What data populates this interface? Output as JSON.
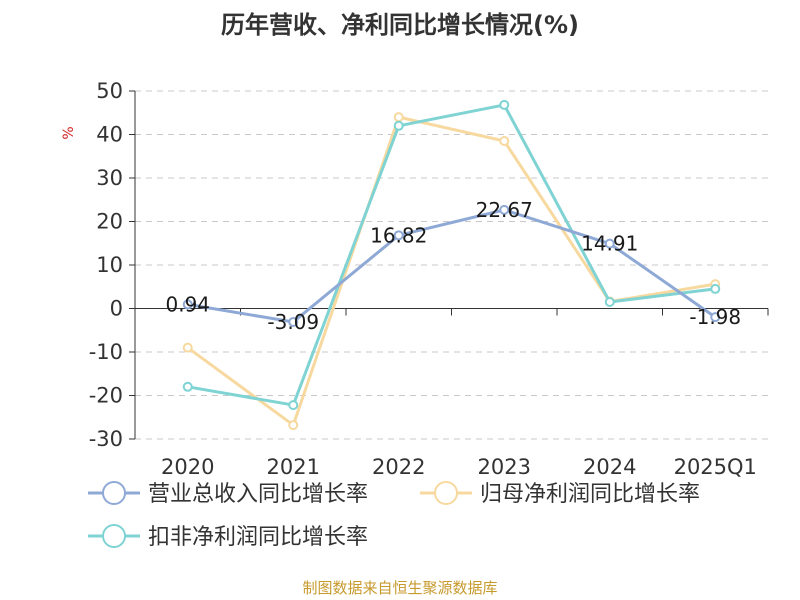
{
  "chart_data": {
    "type": "line",
    "title": "历年营收、净利同比增长情况(%)",
    "ylabel": "%",
    "categories": [
      "2020",
      "2021",
      "2022",
      "2023",
      "2024",
      "2025Q1"
    ],
    "ylim": [
      -30,
      50
    ],
    "yticks": [
      -30,
      -20,
      -10,
      0,
      10,
      20,
      30,
      40,
      50
    ],
    "grid": true,
    "legend_position": "bottom-left",
    "series": [
      {
        "name": "营业总收入同比增长率",
        "color": "#8fa9d6",
        "values": [
          0.94,
          -3.09,
          16.82,
          22.67,
          14.91,
          -1.98
        ],
        "labels": [
          "0.94",
          "-3.09",
          "16.82",
          "22.67",
          "14.91",
          "-1.98"
        ]
      },
      {
        "name": "归母净利润同比增长率",
        "color": "#f7d9a0",
        "values": [
          -9.0,
          -26.8,
          44.0,
          38.5,
          1.6,
          5.6
        ]
      },
      {
        "name": "扣非净利润同比增长率",
        "color": "#7fd3d3",
        "values": [
          -18.0,
          -22.2,
          42.0,
          46.8,
          1.5,
          4.5
        ]
      }
    ]
  },
  "source_text": "制图数据来自恒生聚源数据库"
}
